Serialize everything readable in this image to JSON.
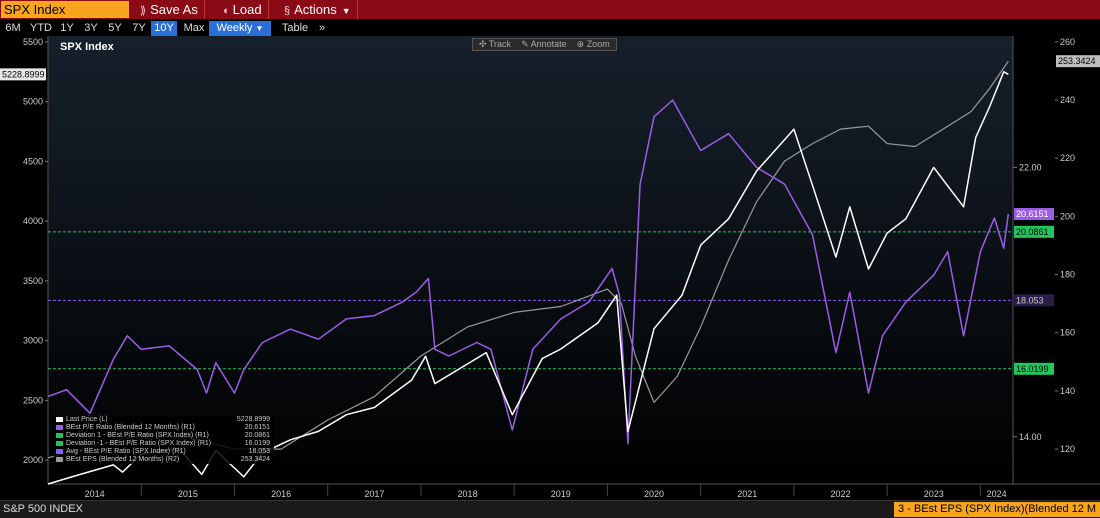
{
  "toolbar": {
    "ticker": "SPX Index",
    "buttons": [
      {
        "label": "Save As",
        "icon": "save-icon"
      },
      {
        "label": "Load",
        "icon": "load-icon"
      },
      {
        "label": "Actions",
        "icon": "actions-icon"
      }
    ],
    "ranges": [
      "6M",
      "YTD",
      "1Y",
      "3Y",
      "5Y",
      "7Y",
      "10Y",
      "Max"
    ],
    "active_range": "10Y",
    "frequency": "Weekly",
    "table_label": "Table",
    "more_label": "»"
  },
  "tools": [
    "Track",
    "Annotate",
    "Zoom"
  ],
  "colors": {
    "price": "#ffffff",
    "pe": "#9b5de5",
    "eps": "#9a9a9a",
    "deviation": "#22c55e",
    "avg": "#8b5cf6",
    "accent": "#f7a51e",
    "toolbar_bg": "#8a0b16"
  },
  "footer": {
    "name": "S&P 500 INDEX",
    "tab": "3 - BEst EPS (SPX Index)(Blended 12 M"
  },
  "chart_data": {
    "type": "line",
    "title": "SPX Index",
    "x_ticks": [
      "2014",
      "2015",
      "2016",
      "2017",
      "2018",
      "2019",
      "2020",
      "2021",
      "2022",
      "2023",
      "2024"
    ],
    "x_range": [
      2014.0,
      2024.35
    ],
    "y_left": {
      "ticks": [
        2000,
        2500,
        3000,
        3500,
        4000,
        4500,
        5000,
        5500
      ],
      "range": [
        1800,
        5550
      ]
    },
    "y_r1": {
      "ticks": [
        "14.00",
        "22.00"
      ],
      "tick_values": [
        14.0,
        22.0
      ],
      "range": [
        12.6,
        25.9
      ]
    },
    "y_r2": {
      "ticks": [
        120,
        140,
        160,
        180,
        200,
        220,
        240,
        260
      ],
      "range": [
        108,
        262
      ]
    },
    "grid": false,
    "legend_position": "bottom-left",
    "legend": [
      {
        "label": "Last Price (L)",
        "value": "5228.8999"
      },
      {
        "label": "BEst P/E Ratio (Blended 12 Months) (R1)",
        "value": "20.6151"
      },
      {
        "label": "Deviation 1 - BEst P/E Ratio (SPX Index) (R1)",
        "value": "20.0861"
      },
      {
        "label": "Deviation -1 - BEst P/E Ratio (SPX Index) (R1)",
        "value": "16.0199"
      },
      {
        "label": "Avg - BEst P/E Ratio (SPX Index) (R1)",
        "value": "18.053"
      },
      {
        "label": "BEst EPS (Blended 12 Months) (R2)",
        "value": "253.3424"
      }
    ],
    "value_tags": {
      "price": "5228.8999",
      "pe": "20.6151",
      "dev_plus": "20.0861",
      "avg": "18.053",
      "dev_minus": "16.0199",
      "eps": "253.3424"
    },
    "levels": {
      "dev_plus": 20.0861,
      "avg": 18.053,
      "dev_minus": 16.0199
    },
    "series": [
      {
        "name": "Last Price (L)",
        "axis": "left",
        "x": [
          2014.0,
          2014.3,
          2014.7,
          2014.8,
          2015.0,
          2015.4,
          2015.65,
          2015.8,
          2016.1,
          2016.3,
          2016.6,
          2016.9,
          2017.2,
          2017.5,
          2017.9,
          2018.05,
          2018.15,
          2018.7,
          2018.98,
          2019.3,
          2019.5,
          2019.9,
          2020.1,
          2020.22,
          2020.5,
          2020.8,
          2021.0,
          2021.3,
          2021.6,
          2022.0,
          2022.2,
          2022.45,
          2022.6,
          2022.8,
          2023.0,
          2023.2,
          2023.5,
          2023.82,
          2023.95,
          2024.1,
          2024.25,
          2024.3
        ],
        "y": [
          1800,
          1870,
          1960,
          1900,
          2050,
          2100,
          1880,
          2080,
          1860,
          2060,
          2170,
          2240,
          2380,
          2440,
          2670,
          2870,
          2640,
          2900,
          2380,
          2850,
          2930,
          3150,
          3380,
          2240,
          3100,
          3380,
          3800,
          4020,
          4420,
          4770,
          4300,
          3700,
          4120,
          3600,
          3900,
          4020,
          4450,
          4120,
          4700,
          4960,
          5250,
          5229
        ]
      },
      {
        "name": "BEst P/E Ratio (Blended 12 Months) (R1)",
        "axis": "r1",
        "x": [
          2014.0,
          2014.2,
          2014.45,
          2014.7,
          2014.85,
          2015.0,
          2015.3,
          2015.6,
          2015.7,
          2015.8,
          2016.0,
          2016.1,
          2016.3,
          2016.6,
          2016.9,
          2017.2,
          2017.5,
          2017.8,
          2017.95,
          2018.08,
          2018.15,
          2018.3,
          2018.6,
          2018.75,
          2018.98,
          2019.2,
          2019.5,
          2019.8,
          2020.05,
          2020.13,
          2020.22,
          2020.35,
          2020.5,
          2020.7,
          2020.9,
          2021.0,
          2021.3,
          2021.6,
          2021.9,
          2022.0,
          2022.2,
          2022.45,
          2022.6,
          2022.8,
          2022.95,
          2023.2,
          2023.5,
          2023.65,
          2023.82,
          2024.0,
          2024.15,
          2024.25,
          2024.3
        ],
        "y": [
          15.2,
          15.4,
          14.7,
          16.3,
          17.0,
          16.6,
          16.7,
          16.0,
          15.3,
          16.2,
          15.3,
          16.0,
          16.8,
          17.2,
          16.9,
          17.5,
          17.6,
          18.0,
          18.3,
          18.7,
          16.6,
          16.4,
          16.8,
          16.6,
          14.2,
          16.6,
          17.5,
          18.0,
          19.0,
          18.2,
          13.8,
          21.5,
          23.5,
          24.0,
          23.0,
          22.5,
          23.0,
          22.0,
          21.5,
          21.0,
          20.0,
          16.5,
          18.3,
          15.3,
          17.0,
          18.0,
          18.8,
          19.5,
          17.0,
          19.5,
          20.5,
          19.6,
          20.6151
        ]
      },
      {
        "name": "BEst EPS (Blended 12 Months) (R2)",
        "axis": "r2",
        "x": [
          2014.0,
          2014.5,
          2015.0,
          2015.5,
          2016.0,
          2016.5,
          2017.0,
          2017.5,
          2018.0,
          2018.5,
          2019.0,
          2019.5,
          2020.0,
          2020.15,
          2020.3,
          2020.5,
          2020.75,
          2021.0,
          2021.3,
          2021.6,
          2021.9,
          2022.2,
          2022.5,
          2022.8,
          2023.0,
          2023.3,
          2023.6,
          2023.9,
          2024.1,
          2024.3
        ],
        "y": [
          117,
          121,
          125,
          124,
          120,
          120,
          130,
          138,
          152,
          162,
          167,
          169,
          175,
          170,
          152,
          136,
          145,
          162,
          185,
          205,
          219,
          225,
          230,
          231,
          225,
          224,
          230,
          236,
          244,
          253.3424
        ]
      }
    ]
  }
}
